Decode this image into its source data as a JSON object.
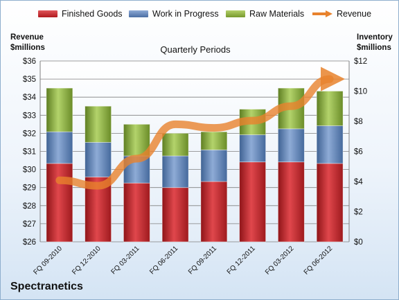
{
  "chart_data": {
    "type": "bar",
    "subtitle": "Quarterly Periods",
    "company": "Spectranetics",
    "left_axis_title": [
      "Revenue",
      "$millions"
    ],
    "right_axis_title": [
      "Inventory",
      "$millions"
    ],
    "categories": [
      "FQ 09-2010",
      "FQ 12-2010",
      "FQ 03-2011",
      "FQ 06-2011",
      "FQ 09-2011",
      "FQ 12-2011",
      "FQ 03-2012",
      "FQ 06-2012"
    ],
    "stacked_series": [
      {
        "name": "Finished Goods",
        "color": "#c0282d",
        "values": [
          5.2,
          4.3,
          3.9,
          3.6,
          4.0,
          5.3,
          5.3,
          5.2
        ]
      },
      {
        "name": "Work in Progress",
        "color": "#5b7fb3",
        "values": [
          2.1,
          2.3,
          1.8,
          2.1,
          2.1,
          1.8,
          2.2,
          2.5
        ]
      },
      {
        "name": "Raw Materials",
        "color": "#8aae3b",
        "values": [
          2.9,
          2.4,
          2.1,
          1.5,
          1.2,
          1.7,
          2.7,
          2.3
        ]
      }
    ],
    "line_series": {
      "name": "Revenue",
      "color": "#e8822d",
      "values": [
        29.4,
        29.1,
        30.6,
        32.5,
        32.3,
        32.7,
        33.5,
        35.0
      ]
    },
    "ylim_left": [
      26,
      36
    ],
    "ylim_right": [
      0,
      12
    ],
    "left_ticks": [
      "$26",
      "$27",
      "$28",
      "$29",
      "$30",
      "$31",
      "$32",
      "$33",
      "$34",
      "$35",
      "$36"
    ],
    "right_ticks": [
      "$0",
      "$2",
      "$4",
      "$6",
      "$8",
      "$10",
      "$12"
    ],
    "grid": true,
    "legend_position": "top"
  }
}
